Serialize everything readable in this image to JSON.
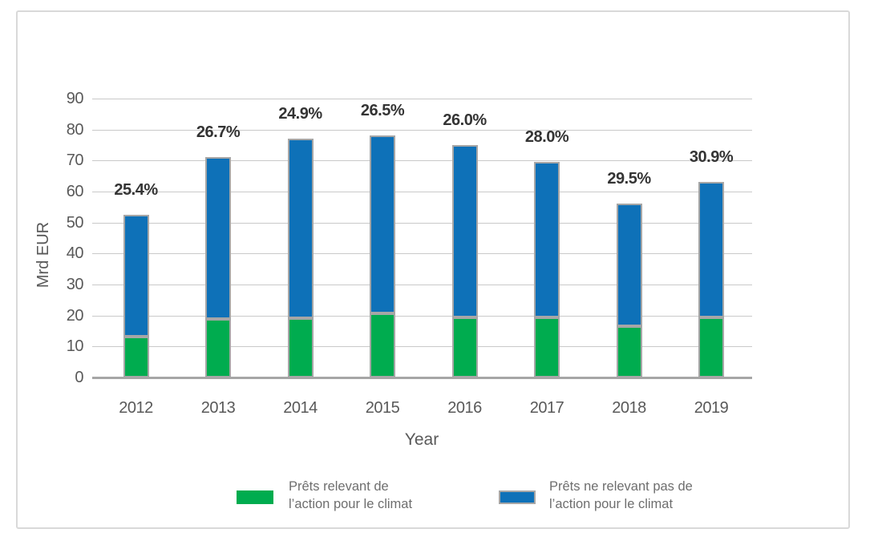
{
  "chart_data": {
    "type": "bar",
    "stacked": true,
    "title": "",
    "xlabel": "Year",
    "ylabel": "Mrd EUR",
    "ylim": [
      0,
      90
    ],
    "ytick_step": 10,
    "grid": true,
    "legend_position": "bottom",
    "categories": [
      "2012",
      "2013",
      "2014",
      "2015",
      "2016",
      "2017",
      "2018",
      "2019"
    ],
    "series": [
      {
        "name": "Prêts relevant de l’action pour le climat",
        "color": "#00ac4f",
        "values": [
          13.3,
          19.0,
          19.2,
          20.7,
          19.5,
          19.5,
          16.5,
          19.5
        ]
      },
      {
        "name": "Prêts ne relevant pas de l’action pour le climat",
        "color": "#0e71b8",
        "values": [
          39.2,
          52.0,
          57.8,
          57.3,
          55.5,
          50.0,
          39.5,
          43.5
        ]
      }
    ],
    "bar_labels": [
      "25.4%",
      "26.7%",
      "24.9%",
      "26.5%",
      "26.0%",
      "28.0%",
      "29.5%",
      "30.9%"
    ]
  },
  "legend": {
    "items": [
      {
        "line1": "Prêts relevant de",
        "line2": "l’action pour le climat",
        "color": "#00ac4f",
        "border": "none"
      },
      {
        "line1": "Prêts ne relevant pas de",
        "line2": "l’action pour le climat",
        "color": "#0e71b8",
        "border": "#a6a6a6"
      }
    ]
  },
  "colors": {
    "bar_border": "#a6a6a6",
    "gridline": "#c9c9c9",
    "axis_line": "#a6a6a6",
    "tick_text": "#595959",
    "percent_text": "#343434",
    "legend_text": "#6e6e6e",
    "frame_border": "#d9d9d9",
    "background": "#ffffff"
  }
}
